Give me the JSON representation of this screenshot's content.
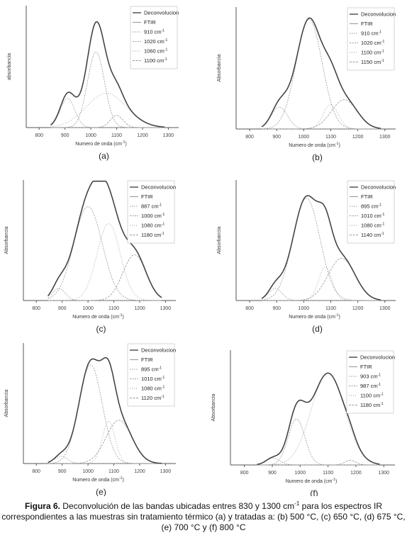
{
  "figure": {
    "caption_label": "Figura 6.",
    "caption_line1": " Deconvolución de las bandas ubicadas entres 830 y 1300 cm",
    "caption_sup": "-1",
    "caption_line1b": " para los espectros IR",
    "caption_line2": "correspondientes a las muestras sin tratamiento térmico (a) y tratadas a: (b) 500 °C, (c) 650 °C, (d) 675 °C,",
    "caption_line3": "(e) 700 °C y (f) 800 °C"
  },
  "chart_data": [
    {
      "panel_label": "(a)",
      "type": "line",
      "ylabel": "absorbancia",
      "xlabel": "Numero de onda (cm",
      "xlabel_sup": "-1",
      "xlabel_end": ")",
      "xlim": [
        750,
        1340
      ],
      "ylim": [
        0,
        1.0
      ],
      "xticks": [
        800,
        900,
        1000,
        1100,
        1200,
        1300
      ],
      "legend": [
        "Deconvolucion",
        "FTIR",
        "910 cm",
        "1020 cm",
        "1060 cm",
        "1100 cm"
      ],
      "legend_sup": [
        "",
        "",
        "-1",
        "-1",
        "-1",
        "-1"
      ],
      "components": [
        {
          "center": 910,
          "height": 0.24,
          "width": 28
        },
        {
          "center": 1020,
          "height": 0.62,
          "width": 33
        },
        {
          "center": 1060,
          "height": 0.28,
          "width": 78
        },
        {
          "center": 1100,
          "height": 0.1,
          "width": 25
        }
      ]
    },
    {
      "panel_label": "(b)",
      "type": "line",
      "ylabel": "Absorbancia",
      "xlabel": "Numero de onda (cm",
      "xlabel_sup": "-1",
      "xlabel_end": ")",
      "xlim": [
        750,
        1340
      ],
      "ylim": [
        0,
        1.0
      ],
      "xticks": [
        800,
        900,
        1000,
        1100,
        1200,
        1300
      ],
      "legend": [
        "Deconvolucion",
        "FTIR",
        "910 cm",
        "1020 cm",
        "1100 cm",
        "1150 cm"
      ],
      "legend_sup": [
        "",
        "",
        "-1",
        "-1",
        "-1",
        "-1"
      ],
      "components": [
        {
          "center": 910,
          "height": 0.18,
          "width": 30
        },
        {
          "center": 1020,
          "height": 0.9,
          "width": 48
        },
        {
          "center": 1100,
          "height": 0.2,
          "width": 28
        },
        {
          "center": 1150,
          "height": 0.24,
          "width": 48
        }
      ]
    },
    {
      "panel_label": "(c)",
      "type": "line",
      "ylabel": "Absorbancia",
      "xlabel": "Numero de onda (cm",
      "xlabel_sup": "-1",
      "xlabel_end": ")",
      "xlim": [
        750,
        1340
      ],
      "ylim": [
        0,
        1.0
      ],
      "xticks": [
        800,
        900,
        1000,
        1100,
        1200,
        1300
      ],
      "legend": [
        "Deconvolucion",
        "FTIR",
        "887 cm",
        "1000 cm",
        "1080 cm",
        "1180 cm"
      ],
      "legend_sup": [
        "",
        "",
        "-1",
        "-1",
        "-1",
        "-1"
      ],
      "components": [
        {
          "center": 887,
          "height": 0.1,
          "width": 25
        },
        {
          "center": 1000,
          "height": 0.78,
          "width": 55
        },
        {
          "center": 1080,
          "height": 0.64,
          "width": 45
        },
        {
          "center": 1180,
          "height": 0.38,
          "width": 45
        }
      ]
    },
    {
      "panel_label": "(d)",
      "type": "line",
      "ylabel": "Absorbancia",
      "xlabel": "Numero de onda (cm",
      "xlabel_sup": "-1",
      "xlabel_end": ")",
      "xlim": [
        750,
        1340
      ],
      "ylim": [
        0,
        1.0
      ],
      "xticks": [
        800,
        900,
        1000,
        1100,
        1200,
        1300
      ],
      "legend": [
        "Deconvolucion",
        "FTIR",
        "895 cm",
        "1010 cm",
        "1080 cm",
        "1140 cm"
      ],
      "legend_sup": [
        "",
        "",
        "-1",
        "-1",
        "-1",
        "-1"
      ],
      "components": [
        {
          "center": 895,
          "height": 0.1,
          "width": 25
        },
        {
          "center": 1010,
          "height": 0.85,
          "width": 50
        },
        {
          "center": 1080,
          "height": 0.28,
          "width": 25
        },
        {
          "center": 1140,
          "height": 0.35,
          "width": 50
        }
      ]
    },
    {
      "panel_label": "(e)",
      "type": "line",
      "ylabel": "Absorbancia",
      "xlabel": "Numero de onda (cm",
      "xlabel_sup": "-1",
      "xlabel_end": ")",
      "xlim": [
        750,
        1340
      ],
      "ylim": [
        0,
        1.0
      ],
      "xticks": [
        800,
        900,
        1000,
        1100,
        1200,
        1300
      ],
      "legend": [
        "Deconvolucion",
        "FTIR",
        "895 cm",
        "1010 cm",
        "1080 cm",
        "1120 cm"
      ],
      "legend_sup": [
        "",
        "",
        "-1",
        "-1",
        "-1",
        "-1"
      ],
      "components": [
        {
          "center": 895,
          "height": 0.06,
          "width": 25
        },
        {
          "center": 1010,
          "height": 0.82,
          "width": 45
        },
        {
          "center": 1080,
          "height": 0.35,
          "width": 25
        },
        {
          "center": 1120,
          "height": 0.36,
          "width": 50
        }
      ]
    },
    {
      "panel_label": "(f)",
      "type": "line",
      "ylabel": "Absorbancia",
      "xlabel": "Numero de onda (cm",
      "xlabel_sup": "-1",
      "xlabel_end": ")",
      "xlim": [
        750,
        1340
      ],
      "ylim": [
        0,
        1.0
      ],
      "xticks": [
        800,
        900,
        1000,
        1100,
        1200,
        1300
      ],
      "legend": [
        "Deconvolucion",
        "FTIR",
        "903 cm",
        "987 cm",
        "1100 cm",
        "1180 cm"
      ],
      "legend_sup": [
        "",
        "",
        "-1",
        "-1",
        "-1",
        "-1"
      ],
      "components": [
        {
          "center": 903,
          "height": 0.06,
          "width": 25
        },
        {
          "center": 987,
          "height": 0.4,
          "width": 30
        },
        {
          "center": 1100,
          "height": 0.8,
          "width": 60
        },
        {
          "center": 1180,
          "height": 0.04,
          "width": 20
        }
      ]
    }
  ]
}
